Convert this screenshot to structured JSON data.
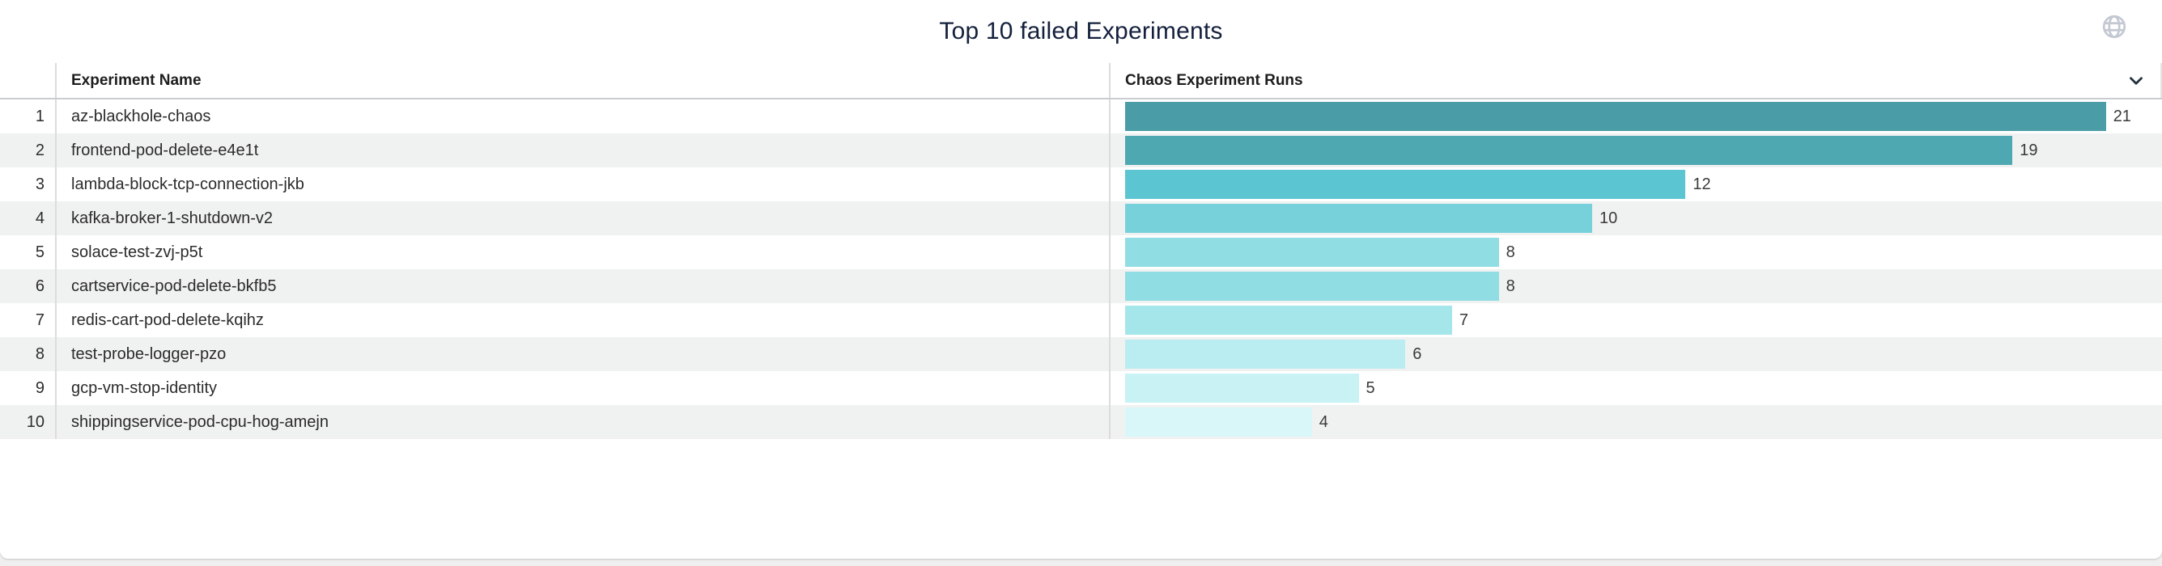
{
  "title": "Top 10 failed Experiments",
  "icons": {
    "globe": "globe-icon",
    "chevron": "chevron-down-icon"
  },
  "table": {
    "column_headers": {
      "name": "Experiment Name",
      "runs": "Chaos Experiment Runs"
    }
  },
  "chart_data": {
    "type": "bar",
    "orientation": "horizontal",
    "title": "Top 10 failed Experiments",
    "xlabel": "Chaos Experiment Runs",
    "ylabel": "Experiment Name",
    "xlim": [
      0,
      21
    ],
    "grid": false,
    "ranks": [
      1,
      2,
      3,
      4,
      5,
      6,
      7,
      8,
      9,
      10
    ],
    "categories": [
      "az-blackhole-chaos",
      "frontend-pod-delete-e4e1t",
      "lambda-block-tcp-connection-jkb",
      "kafka-broker-1-shutdown-v2",
      "solace-test-zvj-p5t",
      "cartservice-pod-delete-bkfb5",
      "redis-cart-pod-delete-kqihz",
      "test-probe-logger-pzo",
      "gcp-vm-stop-identity",
      "shippingservice-pod-cpu-hog-amejn"
    ],
    "values": [
      21,
      19,
      12,
      10,
      8,
      8,
      7,
      6,
      5,
      4
    ],
    "bar_colors": [
      "#4A9DA7",
      "#4DA8B1",
      "#5BC6D2",
      "#76D1DB",
      "#90DEE4",
      "#90DEE4",
      "#A5E6EB",
      "#BAEDF1",
      "#C9F2F5",
      "#D9F7F9"
    ],
    "row_stripe_color": "#F0F1F1",
    "value_label_color": "#3A3A3A"
  },
  "colors": {
    "title_text": "#14203C",
    "globe_icon": "#C3C8D2",
    "chevron_icon": "#25323E",
    "header_border": "#C9CDD0",
    "column_divider": "#DCDCDC"
  }
}
